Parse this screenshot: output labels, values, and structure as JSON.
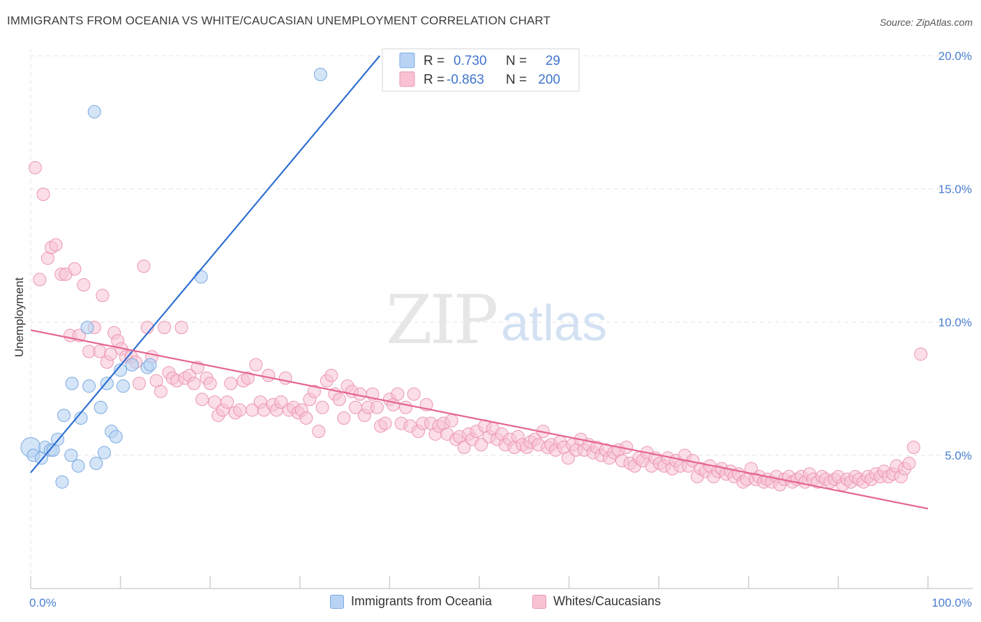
{
  "header": {
    "title": "IMMIGRANTS FROM OCEANIA VS WHITE/CAUCASIAN UNEMPLOYMENT CORRELATION CHART",
    "source": "Source: ZipAtlas.com"
  },
  "watermark": {
    "zip": "ZIP",
    "atlas": "atlas"
  },
  "colors": {
    "blue_fill": "#b8d3f4",
    "blue_stroke": "#7aa8e0",
    "blue_line": "#2f6fd1",
    "pink_fill": "#f8c2d3",
    "pink_stroke": "#eb95b1",
    "pink_line": "#e5648f",
    "grid": "#e3e3e3",
    "axis_text": "#4a7fd0"
  },
  "legend_top": {
    "rows": [
      {
        "r_label": "R =",
        "r_value": "0.730",
        "n_label": "N =",
        "n_value": "29",
        "series": "blue"
      },
      {
        "r_label": "R =",
        "r_value": "-0.863",
        "n_label": "N =",
        "n_value": "200",
        "series": "pink"
      }
    ]
  },
  "legend_bottom": {
    "items": [
      {
        "label": "Immigrants from Oceania",
        "series": "blue"
      },
      {
        "label": "Whites/Caucasians",
        "series": "pink"
      }
    ]
  },
  "chart_data": {
    "type": "scatter",
    "title": "IMMIGRANTS FROM OCEANIA VS WHITE/CAUCASIAN UNEMPLOYMENT CORRELATION CHART",
    "xlabel": "",
    "ylabel": "Unemployment",
    "xlim": [
      0,
      100
    ],
    "ylim": [
      0,
      20.5
    ],
    "x_tick_labels": [
      "0.0%",
      "100.0%"
    ],
    "y_ticks": [
      5,
      10,
      15,
      20
    ],
    "y_tick_labels": [
      "5.0%",
      "10.0%",
      "15.0%",
      "20.0%"
    ],
    "grid": true,
    "legend_placement": "top-center",
    "series": [
      {
        "name": "Immigrants from Oceania",
        "color": "#b8d3f4",
        "r": 0.73,
        "n": 29,
        "points": [
          [
            0.0,
            5.3
          ],
          [
            0.3,
            5.0
          ],
          [
            1.2,
            4.9
          ],
          [
            1.6,
            5.3
          ],
          [
            2.2,
            5.2
          ],
          [
            2.5,
            5.2
          ],
          [
            3.0,
            5.6
          ],
          [
            3.5,
            4.0
          ],
          [
            3.7,
            6.5
          ],
          [
            4.5,
            5.0
          ],
          [
            4.6,
            7.7
          ],
          [
            5.3,
            4.6
          ],
          [
            5.6,
            6.4
          ],
          [
            6.3,
            9.8
          ],
          [
            6.5,
            7.6
          ],
          [
            7.1,
            17.9
          ],
          [
            7.3,
            4.7
          ],
          [
            7.8,
            6.8
          ],
          [
            8.2,
            5.1
          ],
          [
            8.5,
            7.7
          ],
          [
            9.0,
            5.9
          ],
          [
            9.5,
            5.7
          ],
          [
            10.0,
            8.2
          ],
          [
            10.3,
            7.6
          ],
          [
            11.3,
            8.4
          ],
          [
            13.0,
            8.3
          ],
          [
            13.3,
            8.4
          ],
          [
            19.0,
            11.7
          ],
          [
            32.3,
            19.3
          ]
        ],
        "trend_line": {
          "x": [
            0,
            38.9
          ],
          "y": [
            4.35,
            20.0
          ]
        }
      },
      {
        "name": "Whites/Caucasians",
        "color": "#f8c2d3",
        "r": -0.863,
        "n": 200,
        "points": [
          [
            0.5,
            15.8
          ],
          [
            1.0,
            11.6
          ],
          [
            1.4,
            14.8
          ],
          [
            1.9,
            12.4
          ],
          [
            2.3,
            12.8
          ],
          [
            2.8,
            12.9
          ],
          [
            3.4,
            11.8
          ],
          [
            3.9,
            11.8
          ],
          [
            4.4,
            9.5
          ],
          [
            4.9,
            12.0
          ],
          [
            5.4,
            9.5
          ],
          [
            5.9,
            11.4
          ],
          [
            6.5,
            8.9
          ],
          [
            7.1,
            9.8
          ],
          [
            7.7,
            8.9
          ],
          [
            8.0,
            11.0
          ],
          [
            8.5,
            8.5
          ],
          [
            8.9,
            8.8
          ],
          [
            9.3,
            9.6
          ],
          [
            9.7,
            9.3
          ],
          [
            10.1,
            9.0
          ],
          [
            10.6,
            8.7
          ],
          [
            11.2,
            8.7
          ],
          [
            11.7,
            8.5
          ],
          [
            12.1,
            7.7
          ],
          [
            12.6,
            12.1
          ],
          [
            13.0,
            9.8
          ],
          [
            13.5,
            8.7
          ],
          [
            14.0,
            7.8
          ],
          [
            14.5,
            7.4
          ],
          [
            14.9,
            9.8
          ],
          [
            15.4,
            8.1
          ],
          [
            15.8,
            7.9
          ],
          [
            16.3,
            7.8
          ],
          [
            16.8,
            9.8
          ],
          [
            17.2,
            7.9
          ],
          [
            17.7,
            8.0
          ],
          [
            18.2,
            7.7
          ],
          [
            18.6,
            8.3
          ],
          [
            19.1,
            7.1
          ],
          [
            19.6,
            7.9
          ],
          [
            20.0,
            7.7
          ],
          [
            20.5,
            7.0
          ],
          [
            20.9,
            6.5
          ],
          [
            21.4,
            6.7
          ],
          [
            21.9,
            7.0
          ],
          [
            22.3,
            7.7
          ],
          [
            22.8,
            6.6
          ],
          [
            23.3,
            6.7
          ],
          [
            23.7,
            7.8
          ],
          [
            24.2,
            7.9
          ],
          [
            24.7,
            6.7
          ],
          [
            25.1,
            8.4
          ],
          [
            25.6,
            7.0
          ],
          [
            26.0,
            6.7
          ],
          [
            26.5,
            8.0
          ],
          [
            27.0,
            6.9
          ],
          [
            27.4,
            6.7
          ],
          [
            27.9,
            7.0
          ],
          [
            28.4,
            7.9
          ],
          [
            28.8,
            6.7
          ],
          [
            29.3,
            6.8
          ],
          [
            29.8,
            6.6
          ],
          [
            30.2,
            6.7
          ],
          [
            30.7,
            6.4
          ],
          [
            31.1,
            7.1
          ],
          [
            31.6,
            7.4
          ],
          [
            32.1,
            5.9
          ],
          [
            32.5,
            6.8
          ],
          [
            33.0,
            7.8
          ],
          [
            33.5,
            8.0
          ],
          [
            33.9,
            7.3
          ],
          [
            34.4,
            7.1
          ],
          [
            34.9,
            6.4
          ],
          [
            35.3,
            7.6
          ],
          [
            35.8,
            7.4
          ],
          [
            36.2,
            6.8
          ],
          [
            36.7,
            7.3
          ],
          [
            37.2,
            6.5
          ],
          [
            37.6,
            6.8
          ],
          [
            38.1,
            7.3
          ],
          [
            38.6,
            6.8
          ],
          [
            39.0,
            6.1
          ],
          [
            39.5,
            6.2
          ],
          [
            40.0,
            7.1
          ],
          [
            40.4,
            6.9
          ],
          [
            40.9,
            7.3
          ],
          [
            41.3,
            6.2
          ],
          [
            41.8,
            6.8
          ],
          [
            42.3,
            6.1
          ],
          [
            42.7,
            7.3
          ],
          [
            43.2,
            5.9
          ],
          [
            43.7,
            6.2
          ],
          [
            44.1,
            6.9
          ],
          [
            44.6,
            6.2
          ],
          [
            45.1,
            5.8
          ],
          [
            45.5,
            6.1
          ],
          [
            46.0,
            6.2
          ],
          [
            46.4,
            5.8
          ],
          [
            46.9,
            6.3
          ],
          [
            47.4,
            5.6
          ],
          [
            47.8,
            5.7
          ],
          [
            48.3,
            5.3
          ],
          [
            48.8,
            5.8
          ],
          [
            49.2,
            5.6
          ],
          [
            49.7,
            5.9
          ],
          [
            50.2,
            5.4
          ],
          [
            50.6,
            6.1
          ],
          [
            51.1,
            5.7
          ],
          [
            51.5,
            6.0
          ],
          [
            52.0,
            5.6
          ],
          [
            52.5,
            5.8
          ],
          [
            52.9,
            5.4
          ],
          [
            53.4,
            5.6
          ],
          [
            53.9,
            5.3
          ],
          [
            54.3,
            5.7
          ],
          [
            54.8,
            5.4
          ],
          [
            55.3,
            5.3
          ],
          [
            55.7,
            5.5
          ],
          [
            56.2,
            5.6
          ],
          [
            56.6,
            5.4
          ],
          [
            57.1,
            5.9
          ],
          [
            57.6,
            5.3
          ],
          [
            58.0,
            5.4
          ],
          [
            58.5,
            5.2
          ],
          [
            59.0,
            5.5
          ],
          [
            59.4,
            5.3
          ],
          [
            59.9,
            4.9
          ],
          [
            60.4,
            5.4
          ],
          [
            60.8,
            5.2
          ],
          [
            61.3,
            5.6
          ],
          [
            61.7,
            5.2
          ],
          [
            62.2,
            5.4
          ],
          [
            62.7,
            5.1
          ],
          [
            63.1,
            5.3
          ],
          [
            63.6,
            5.0
          ],
          [
            64.1,
            5.2
          ],
          [
            64.5,
            4.9
          ],
          [
            65.0,
            5.1
          ],
          [
            65.5,
            5.2
          ],
          [
            65.9,
            4.8
          ],
          [
            66.4,
            5.3
          ],
          [
            66.8,
            4.7
          ],
          [
            67.3,
            4.6
          ],
          [
            67.8,
            4.9
          ],
          [
            68.2,
            4.8
          ],
          [
            68.7,
            5.1
          ],
          [
            69.2,
            4.6
          ],
          [
            69.6,
            4.9
          ],
          [
            70.1,
            4.7
          ],
          [
            70.6,
            4.6
          ],
          [
            71.0,
            4.9
          ],
          [
            71.5,
            4.5
          ],
          [
            71.9,
            4.8
          ],
          [
            72.4,
            4.6
          ],
          [
            72.9,
            5.0
          ],
          [
            73.3,
            4.6
          ],
          [
            73.8,
            4.8
          ],
          [
            74.3,
            4.2
          ],
          [
            74.7,
            4.5
          ],
          [
            75.2,
            4.4
          ],
          [
            75.7,
            4.6
          ],
          [
            76.1,
            4.2
          ],
          [
            76.6,
            4.4
          ],
          [
            77.0,
            4.5
          ],
          [
            77.5,
            4.3
          ],
          [
            78.0,
            4.4
          ],
          [
            78.4,
            4.2
          ],
          [
            78.9,
            4.3
          ],
          [
            79.4,
            4.0
          ],
          [
            79.8,
            4.1
          ],
          [
            80.3,
            4.5
          ],
          [
            80.8,
            4.1
          ],
          [
            81.2,
            4.2
          ],
          [
            81.7,
            4.0
          ],
          [
            82.1,
            4.1
          ],
          [
            82.6,
            4.0
          ],
          [
            83.1,
            4.2
          ],
          [
            83.5,
            3.9
          ],
          [
            84.0,
            4.1
          ],
          [
            84.5,
            4.2
          ],
          [
            84.9,
            4.0
          ],
          [
            85.4,
            4.1
          ],
          [
            85.9,
            4.2
          ],
          [
            86.3,
            4.0
          ],
          [
            86.8,
            4.3
          ],
          [
            87.2,
            4.1
          ],
          [
            87.7,
            4.0
          ],
          [
            88.2,
            4.2
          ],
          [
            88.6,
            4.1
          ],
          [
            89.1,
            4.0
          ],
          [
            89.6,
            4.1
          ],
          [
            90.0,
            4.2
          ],
          [
            90.5,
            3.9
          ],
          [
            91.0,
            4.1
          ],
          [
            91.4,
            4.0
          ],
          [
            91.9,
            4.2
          ],
          [
            92.3,
            4.1
          ],
          [
            92.8,
            4.0
          ],
          [
            93.3,
            4.2
          ],
          [
            93.7,
            4.1
          ],
          [
            94.2,
            4.3
          ],
          [
            94.7,
            4.2
          ],
          [
            95.1,
            4.4
          ],
          [
            95.6,
            4.2
          ],
          [
            96.1,
            4.3
          ],
          [
            96.5,
            4.6
          ],
          [
            97.0,
            4.2
          ],
          [
            97.4,
            4.5
          ],
          [
            97.9,
            4.7
          ],
          [
            98.4,
            5.3
          ],
          [
            99.2,
            8.8
          ]
        ],
        "trend_line": {
          "x": [
            0,
            100
          ],
          "y": [
            9.7,
            3.0
          ]
        }
      }
    ]
  }
}
